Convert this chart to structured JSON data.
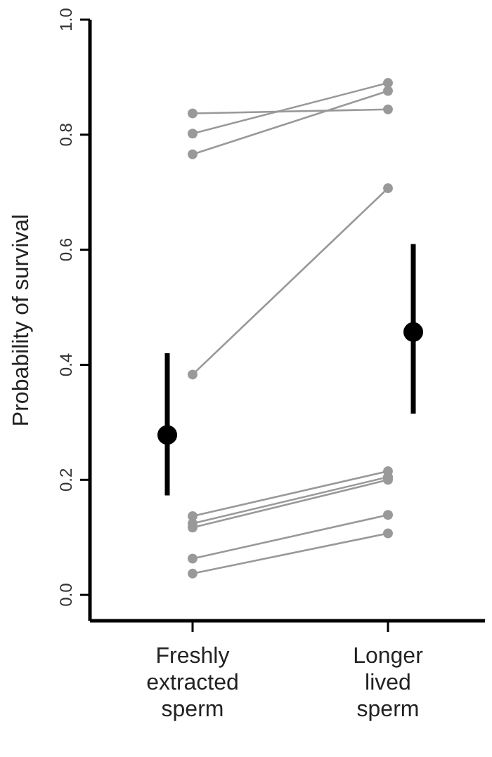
{
  "chart_data": {
    "type": "line",
    "ylabel": "Probability of survival",
    "categories": [
      "Freshly extracted sperm",
      "Longer lived sperm"
    ],
    "ylim": [
      -0.045,
      1.0
    ],
    "yticks": [
      {
        "value": 0,
        "label": "0.0"
      },
      0.2,
      0.4,
      0.6,
      0.8,
      {
        "value": 1,
        "label": "1.0"
      }
    ],
    "grid": false,
    "marker": "circle",
    "line_style": "solid",
    "series": [
      {
        "color": "#999999",
        "values": [
          0.837,
          0.844
        ]
      },
      {
        "color": "#999999",
        "values": [
          0.802,
          0.89
        ]
      },
      {
        "color": "#999999",
        "values": [
          0.766,
          0.876
        ]
      },
      {
        "color": "#999999",
        "values": [
          0.383,
          0.707
        ]
      },
      {
        "color": "#999999",
        "values": [
          0.137,
          0.215
        ]
      },
      {
        "color": "#999999",
        "values": [
          0.124,
          0.205
        ]
      },
      {
        "color": "#999999",
        "values": [
          0.117,
          0.2
        ]
      },
      {
        "color": "#999999",
        "values": [
          0.063,
          0.139
        ]
      },
      {
        "color": "#999999",
        "values": [
          0.037,
          0.107
        ]
      },
      {
        "type": "scatter",
        "color": "#000000",
        "values": [
          0.278,
          0.457
        ],
        "errors": [
          [
            0.173,
            0.42
          ],
          [
            0.315,
            0.61
          ]
        ]
      }
    ]
  }
}
